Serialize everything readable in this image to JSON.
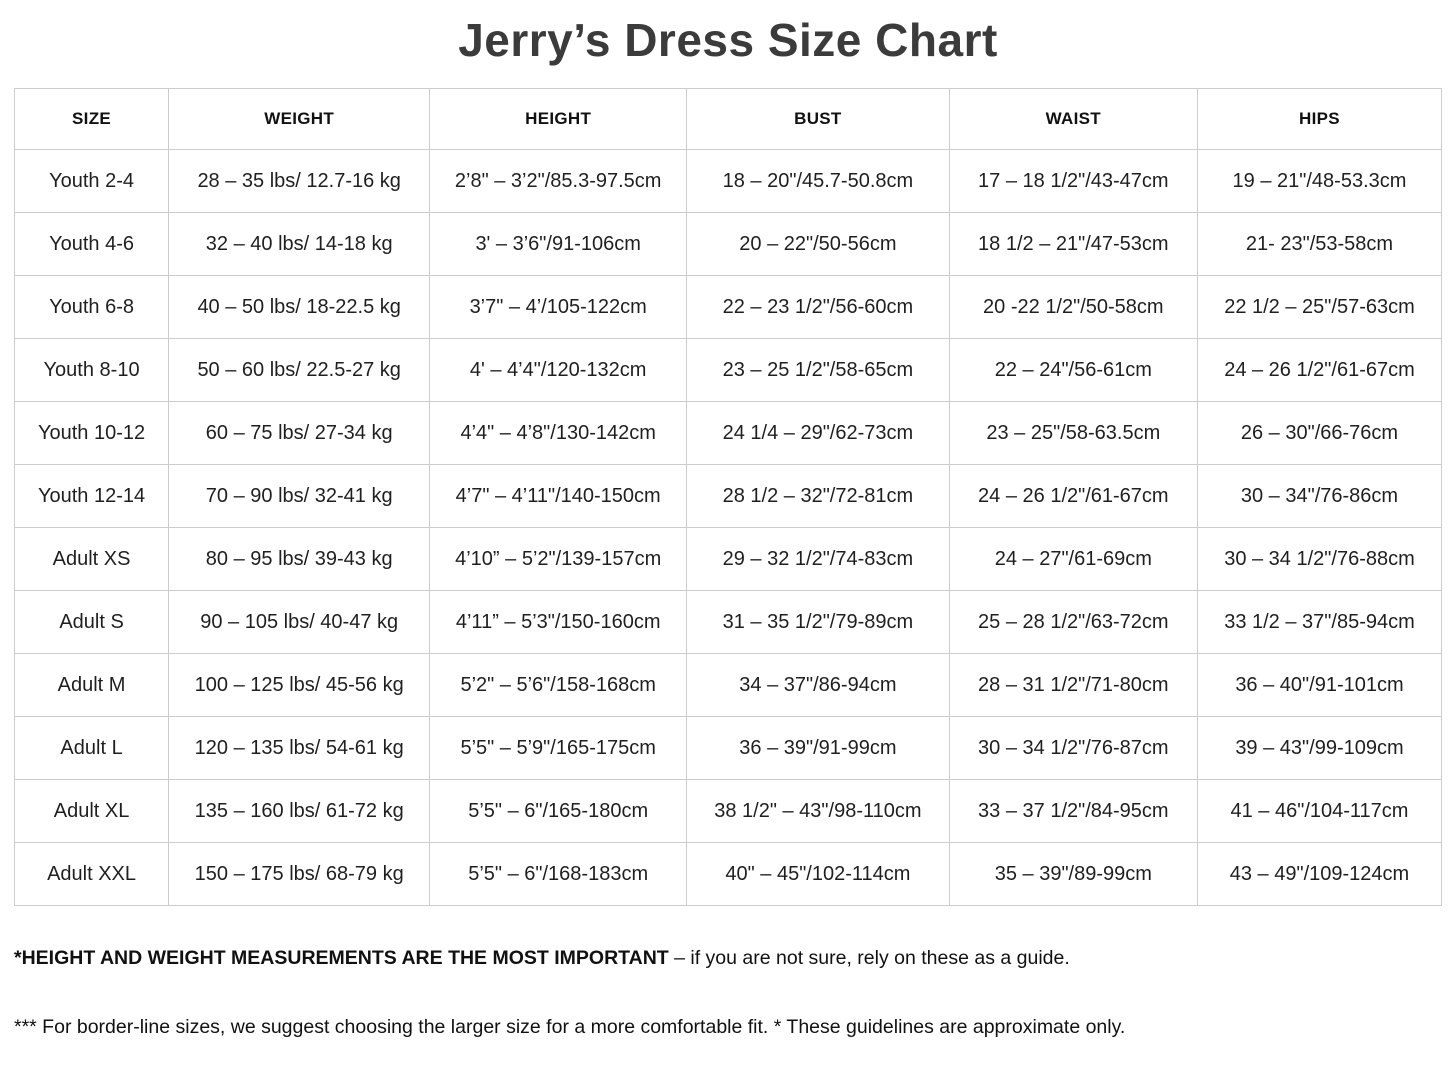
{
  "title": "Jerry’s Dress Size Chart",
  "table": {
    "headers": [
      "SIZE",
      "WEIGHT",
      "HEIGHT",
      "BUST",
      "WAIST",
      "HIPS"
    ],
    "rows": [
      {
        "size": "Youth 2-4",
        "weight": "28 – 35 lbs/ 12.7-16 kg",
        "height": "2’8\" – 3’2\"/85.3-97.5cm",
        "bust": "18 – 20\"/45.7-50.8cm",
        "waist": "17 – 18 1/2\"/43-47cm",
        "hips": "19 – 21\"/48-53.3cm"
      },
      {
        "size": "Youth 4-6",
        "weight": "32 – 40 lbs/ 14-18 kg",
        "height": "3' – 3’6\"/91-106cm",
        "bust": "20 – 22\"/50-56cm",
        "waist": "18 1/2 – 21\"/47-53cm",
        "hips": "21- 23\"/53-58cm"
      },
      {
        "size": "Youth 6-8",
        "weight": "40 – 50 lbs/ 18-22.5 kg",
        "height": "3’7\" – 4’/105-122cm",
        "bust": "22 – 23 1/2\"/56-60cm",
        "waist": "20 -22 1/2\"/50-58cm",
        "hips": "22 1/2 – 25\"/57-63cm"
      },
      {
        "size": "Youth 8-10",
        "weight": "50 – 60 lbs/ 22.5-27 kg",
        "height": "4' – 4’4\"/120-132cm",
        "bust": "23 – 25 1/2\"/58-65cm",
        "waist": "22 – 24\"/56-61cm",
        "hips": "24 – 26 1/2\"/61-67cm"
      },
      {
        "size": "Youth 10-12",
        "weight": "60 – 75 lbs/ 27-34 kg",
        "height": "4’4\" – 4’8\"/130-142cm",
        "bust": "24 1/4 – 29\"/62-73cm",
        "waist": "23 – 25\"/58-63.5cm",
        "hips": "26 – 30\"/66-76cm"
      },
      {
        "size": "Youth 12-14",
        "weight": "70 – 90 lbs/ 32-41 kg",
        "height": "4’7\" – 4’11\"/140-150cm",
        "bust": "28 1/2 – 32\"/72-81cm",
        "waist": "24 – 26 1/2\"/61-67cm",
        "hips": "30 – 34\"/76-86cm"
      },
      {
        "size": "Adult XS",
        "weight": "80 – 95 lbs/ 39-43 kg",
        "height": "4’10” – 5’2\"/139-157cm",
        "bust": "29 – 32 1/2\"/74-83cm",
        "waist": "24 – 27\"/61-69cm",
        "hips": "30 – 34 1/2\"/76-88cm"
      },
      {
        "size": "Adult S",
        "weight": "90 – 105 lbs/ 40-47 kg",
        "height": "4’11” – 5’3\"/150-160cm",
        "bust": "31 – 35 1/2\"/79-89cm",
        "waist": "25 – 28 1/2\"/63-72cm",
        "hips": "33 1/2 – 37\"/85-94cm"
      },
      {
        "size": "Adult M",
        "weight": "100 – 125 lbs/ 45-56 kg",
        "height": "5’2\" – 5’6\"/158-168cm",
        "bust": "34 – 37\"/86-94cm",
        "waist": "28 – 31 1/2\"/71-80cm",
        "hips": "36 – 40\"/91-101cm"
      },
      {
        "size": "Adult L",
        "weight": "120 – 135 lbs/ 54-61 kg",
        "height": "5’5\" – 5’9\"/165-175cm",
        "bust": "36 – 39\"/91-99cm",
        "waist": "30 – 34 1/2\"/76-87cm",
        "hips": "39 – 43\"/99-109cm"
      },
      {
        "size": "Adult XL",
        "weight": "135 – 160 lbs/ 61-72 kg",
        "height": "5’5\" – 6\"/165-180cm",
        "bust": "38 1/2\" – 43\"/98-110cm",
        "waist": "33 – 37 1/2\"/84-95cm",
        "hips": "41 – 46\"/104-117cm"
      },
      {
        "size": "Adult XXL",
        "weight": "150 – 175 lbs/ 68-79 kg",
        "height": "5’5\" – 6\"/168-183cm",
        "bust": "40\" – 45\"/102-114cm",
        "waist": "35 – 39\"/89-99cm",
        "hips": "43 – 49\"/109-124cm"
      }
    ]
  },
  "notes": {
    "note1_bold": "*HEIGHT AND WEIGHT MEASUREMENTS ARE THE MOST IMPORTANT",
    "note1_rest": " – if you are not sure, rely on these as a guide.",
    "note2": "*** For border-line sizes, we suggest choosing the larger size for a more comfortable fit. * These guidelines are approximate only."
  },
  "colors": {
    "border": "#cccccc",
    "text": "#1f1f1f",
    "title": "#3b3b3b",
    "background": "#ffffff"
  }
}
